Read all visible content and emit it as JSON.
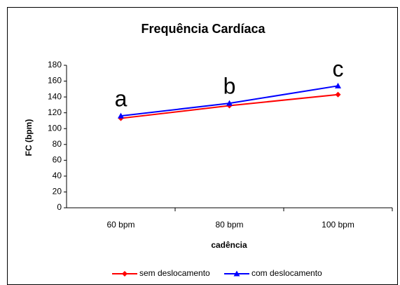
{
  "chart_data": {
    "type": "line",
    "title": "Frequência Cardíaca",
    "x_label": "cadência",
    "y_label": "FC (bpm)",
    "categories": [
      "60 bpm",
      "80 bpm",
      "100 bpm"
    ],
    "series": [
      {
        "name": "sem deslocamento",
        "color": "#ff0000",
        "values": [
          113,
          129,
          143
        ]
      },
      {
        "name": "com deslocamento",
        "color": "#0000ff",
        "values": [
          116,
          132,
          154
        ]
      }
    ],
    "annotations": [
      "a",
      "b",
      "c"
    ],
    "ylim": [
      0,
      180
    ],
    "yticks": [
      0,
      20,
      40,
      60,
      80,
      100,
      120,
      140,
      160,
      180
    ]
  }
}
